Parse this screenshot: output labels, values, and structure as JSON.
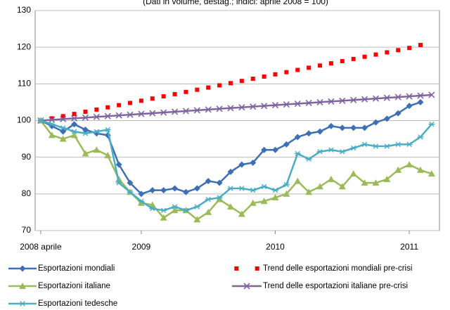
{
  "chart_data": {
    "type": "line",
    "subtitle": "(Dati in volume, destag.; indici: aprile 2008 = 100)",
    "x": [
      0,
      1,
      2,
      3,
      4,
      5,
      6,
      7,
      8,
      9,
      10,
      11,
      12,
      13,
      14,
      15,
      16,
      17,
      18,
      19,
      20,
      21,
      22,
      23,
      24,
      25,
      26,
      27,
      28,
      29,
      30,
      31,
      32,
      33,
      34,
      35
    ],
    "xlim": [
      -0.5,
      35.7
    ],
    "xticks": [
      {
        "value": 0,
        "label": "2008 aprile"
      },
      {
        "value": 9,
        "label": "2009"
      },
      {
        "value": 21,
        "label": "2010"
      },
      {
        "value": 33,
        "label": "2011"
      }
    ],
    "ylim": [
      70,
      130
    ],
    "yticks": [
      70,
      80,
      90,
      100,
      110,
      120,
      130
    ],
    "grid": true,
    "legend": "bottom",
    "series": [
      {
        "name": "Esportazioni mondiali",
        "color": "#3d6fb6",
        "marker": "diamond",
        "line": true,
        "values": [
          100,
          98.5,
          97,
          99,
          97.5,
          96.5,
          96,
          88,
          83,
          80,
          81,
          81,
          81.5,
          80.5,
          81.5,
          83.5,
          83,
          86,
          88,
          88.5,
          92,
          92,
          93.5,
          95.5,
          96.5,
          97,
          98.5,
          98,
          98,
          98,
          99.5,
          100.5,
          102,
          104,
          105,
          null
        ]
      },
      {
        "name": "Trend delle esportazioni mondiali pre-crisi",
        "color": "#ff0000",
        "marker": "square",
        "line": false,
        "values": [
          100,
          100.6,
          101.2,
          101.8,
          102.4,
          103,
          103.6,
          104.2,
          104.8,
          105.4,
          106,
          106.6,
          107.2,
          107.8,
          108.4,
          109,
          109.6,
          110.2,
          110.8,
          111.4,
          112,
          112.6,
          113.2,
          113.8,
          114.4,
          115,
          115.6,
          116.2,
          116.8,
          117.4,
          118,
          118.6,
          119.2,
          119.8,
          120.6,
          null
        ]
      },
      {
        "name": "Esportazioni italiane",
        "color": "#9bbb59",
        "marker": "triangle",
        "line": true,
        "values": [
          100,
          96,
          95,
          96,
          91,
          92,
          90.5,
          84,
          80.5,
          77.5,
          77,
          73.5,
          75.5,
          75.5,
          73,
          75,
          78.5,
          76.5,
          74.5,
          77.5,
          78,
          79,
          80,
          83.5,
          80.5,
          82,
          84,
          82,
          85.5,
          83,
          83,
          84,
          86.5,
          88,
          86.5,
          85.5
        ]
      },
      {
        "name": "Trend delle esportazioni italiane pre-crisi",
        "color": "#8064a2",
        "marker": "x",
        "line": true,
        "values": [
          100,
          100.2,
          100.4,
          100.6,
          100.8,
          101,
          101.2,
          101.4,
          101.6,
          101.8,
          102,
          102.2,
          102.4,
          102.6,
          102.8,
          103,
          103.2,
          103.4,
          103.6,
          103.8,
          104,
          104.2,
          104.4,
          104.6,
          104.8,
          105,
          105.2,
          105.4,
          105.6,
          105.8,
          106,
          106.2,
          106.4,
          106.6,
          106.8,
          107
        ]
      },
      {
        "name": "Esportazioni tedesche",
        "color": "#4bacc6",
        "marker": "star",
        "line": true,
        "values": [
          100,
          99,
          98,
          97,
          96.5,
          97,
          97.5,
          83,
          80.5,
          78,
          76,
          75.5,
          76.5,
          75.5,
          76.5,
          78.5,
          79,
          81.5,
          81.5,
          81,
          82,
          81,
          82.5,
          91,
          89.5,
          91.5,
          92,
          91.5,
          92.5,
          93.5,
          93,
          93,
          93.5,
          93.5,
          95.5,
          99
        ]
      }
    ]
  }
}
